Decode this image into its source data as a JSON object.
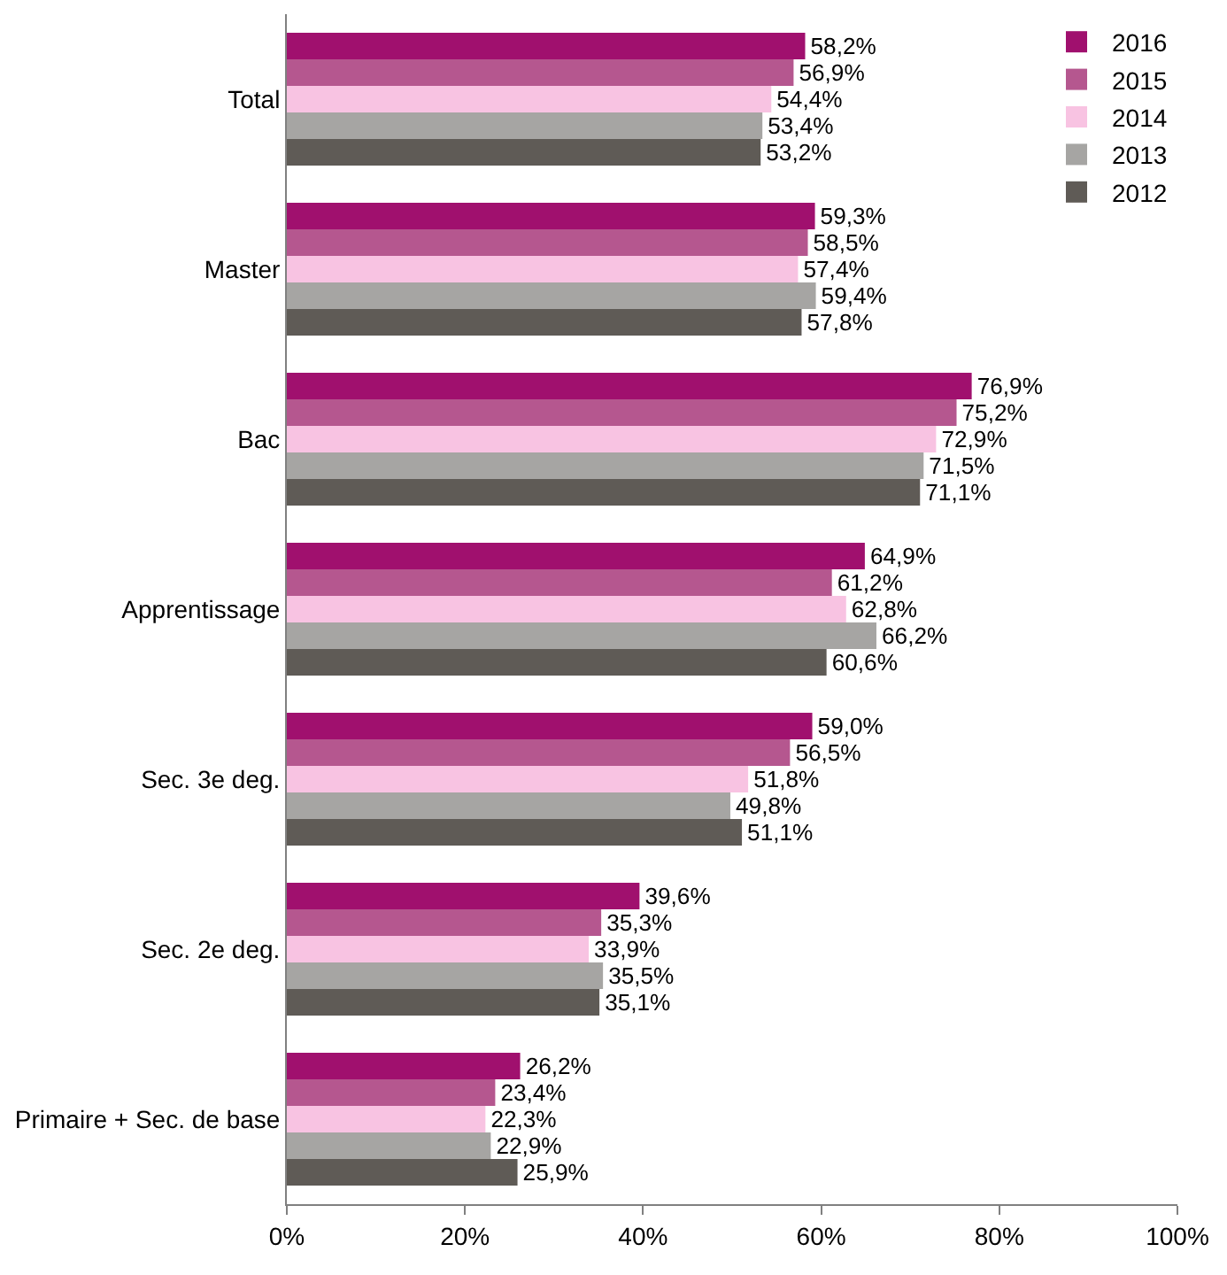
{
  "chart_data": {
    "type": "bar",
    "orientation": "horizontal",
    "categories": [
      "Total",
      "Master",
      "Bac",
      "Apprentissage",
      "Sec. 3e deg.",
      "Sec. 2e deg.",
      "Primaire + Sec. de base"
    ],
    "series": [
      {
        "name": "2016",
        "color": "#a0106e",
        "values": [
          58.2,
          59.3,
          76.9,
          64.9,
          59.0,
          39.6,
          26.2
        ],
        "value_labels": [
          "58,2%",
          "59,3%",
          "76,9%",
          "64,9%",
          "59,0%",
          "39,6%",
          "26,2%"
        ]
      },
      {
        "name": "2015",
        "color": "#b5578f",
        "values": [
          56.9,
          58.5,
          75.2,
          61.2,
          56.5,
          35.3,
          23.4
        ],
        "value_labels": [
          "56,9%",
          "58,5%",
          "75,2%",
          "61,2%",
          "56,5%",
          "35,3%",
          "23,4%"
        ]
      },
      {
        "name": "2014",
        "color": "#f8c3e2",
        "values": [
          54.4,
          57.4,
          72.9,
          62.8,
          51.8,
          33.9,
          22.3
        ],
        "value_labels": [
          "54,4%",
          "57,4%",
          "72,9%",
          "62,8%",
          "51,8%",
          "33,9%",
          "22,3%"
        ]
      },
      {
        "name": "2013",
        "color": "#a6a5a3",
        "values": [
          53.4,
          59.4,
          71.5,
          66.2,
          49.8,
          35.5,
          22.9
        ],
        "value_labels": [
          "53,4%",
          "59,4%",
          "71,5%",
          "66,2%",
          "49,8%",
          "35,5%",
          "22,9%"
        ]
      },
      {
        "name": "2012",
        "color": "#5f5b56",
        "values": [
          53.2,
          57.8,
          71.1,
          60.6,
          51.1,
          35.1,
          25.9
        ],
        "value_labels": [
          "53,2%",
          "57,8%",
          "71,1%",
          "60,6%",
          "51,1%",
          "35,1%",
          "25,9%"
        ]
      }
    ],
    "xlim": [
      0,
      100
    ],
    "xticks": [
      {
        "value": 0,
        "label": "0%"
      },
      {
        "value": 20,
        "label": "20%"
      },
      {
        "value": 40,
        "label": "40%"
      },
      {
        "value": 60,
        "label": "60%"
      },
      {
        "value": 80,
        "label": "80%"
      },
      {
        "value": 100,
        "label": "100%"
      }
    ],
    "grid": false,
    "legend": "top right"
  }
}
